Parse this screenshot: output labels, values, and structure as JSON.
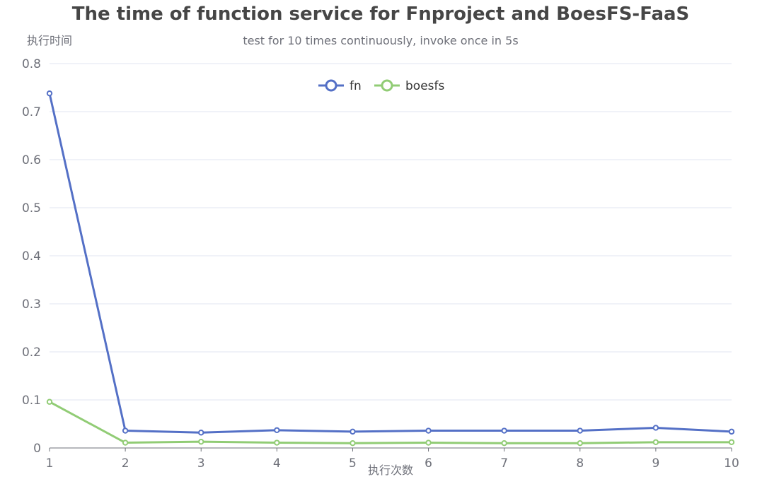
{
  "chart_data": {
    "type": "line",
    "title": "The time of function service for Fnproject and BoesFS-FaaS",
    "subtitle": "test for 10 times continuously, invoke once in 5s",
    "xlabel": "执行次数",
    "ylabel": "执行时间",
    "x": [
      "1",
      "2",
      "3",
      "4",
      "5",
      "6",
      "7",
      "8",
      "9",
      "10"
    ],
    "ylim": [
      0,
      0.8
    ],
    "yticks": [
      "0",
      "0.1",
      "0.2",
      "0.3",
      "0.4",
      "0.5",
      "0.6",
      "0.7",
      "0.8"
    ],
    "grid": true,
    "legend_position": "top-center",
    "series": [
      {
        "name": "fn",
        "color": "#5470c6",
        "values": [
          0.738,
          0.036,
          0.032,
          0.037,
          0.034,
          0.036,
          0.036,
          0.036,
          0.042,
          0.034
        ]
      },
      {
        "name": "boesfs",
        "color": "#91cc75",
        "values": [
          0.096,
          0.011,
          0.013,
          0.011,
          0.01,
          0.011,
          0.01,
          0.01,
          0.012,
          0.012
        ]
      }
    ]
  }
}
